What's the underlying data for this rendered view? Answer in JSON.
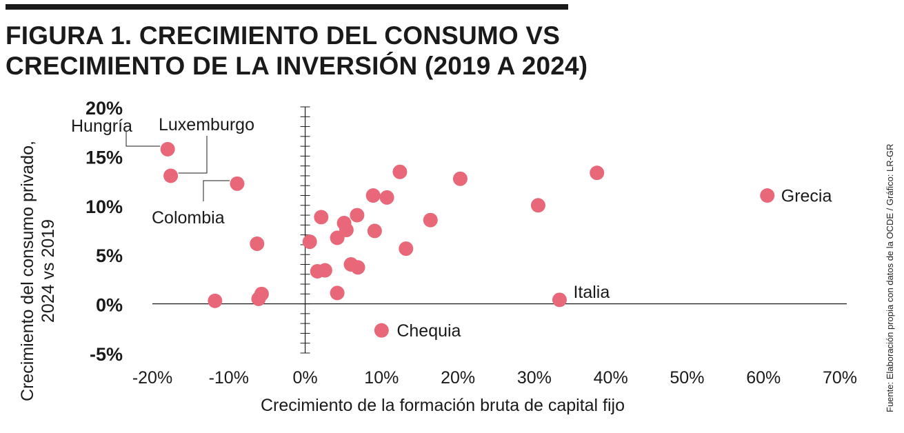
{
  "header": {
    "title_line1": "FIGURA 1. CRECIMIENTO DEL CONSUMO VS",
    "title_line2": "CRECIMIENTO DE LA INVERSIÓN (2019 A 2024)"
  },
  "source": "Fuente: Elaboración propia con datos de la OCDE / Gráfico: LR-GR",
  "colors": {
    "point": "#e8687a",
    "axis": "#1a1a1a",
    "text": "#1a1a1a"
  },
  "chart_data": {
    "type": "scatter",
    "title": "FIGURA 1. CRECIMIENTO DEL CONSUMO VS CRECIMIENTO DE LA INVERSIÓN (2019 A 2024)",
    "xlabel": "Crecimiento de la formación bruta de capital fijo",
    "ylabel_line1": "Crecimiento del consumo privado,",
    "ylabel_line2": "2024 vs 2019",
    "xlim": [
      -20,
      70
    ],
    "ylim": [
      -5,
      20
    ],
    "xticks": [
      -20,
      -10,
      0,
      10,
      20,
      30,
      40,
      50,
      60,
      70
    ],
    "xtick_labels": [
      "-20%",
      "-10%",
      "0%",
      "10%",
      "20%",
      "30%",
      "40%",
      "50%",
      "60%",
      "70%"
    ],
    "yticks": [
      20,
      15,
      10,
      5,
      0,
      -5
    ],
    "ytick_labels": [
      "20%",
      "15%",
      "10%",
      "5%",
      "0%",
      "-5%"
    ],
    "grid": false,
    "points": [
      {
        "x": -18.0,
        "y": 15.7,
        "label": "Hungría"
      },
      {
        "x": -17.6,
        "y": 13.0,
        "label": "Luxemburgo"
      },
      {
        "x": -8.9,
        "y": 12.2,
        "label": "Colombia"
      },
      {
        "x": -6.3,
        "y": 6.1,
        "label": ""
      },
      {
        "x": -11.8,
        "y": 0.3,
        "label": ""
      },
      {
        "x": -6.1,
        "y": 0.5,
        "label": ""
      },
      {
        "x": -5.7,
        "y": 1.0,
        "label": ""
      },
      {
        "x": 0.6,
        "y": 6.3,
        "label": ""
      },
      {
        "x": 1.6,
        "y": 3.3,
        "label": ""
      },
      {
        "x": 2.1,
        "y": 8.8,
        "label": ""
      },
      {
        "x": 2.6,
        "y": 3.4,
        "label": ""
      },
      {
        "x": 4.2,
        "y": 6.7,
        "label": ""
      },
      {
        "x": 4.2,
        "y": 1.1,
        "label": ""
      },
      {
        "x": 5.1,
        "y": 8.2,
        "label": ""
      },
      {
        "x": 5.4,
        "y": 7.5,
        "label": ""
      },
      {
        "x": 6.0,
        "y": 4.0,
        "label": ""
      },
      {
        "x": 6.8,
        "y": 9.0,
        "label": ""
      },
      {
        "x": 6.9,
        "y": 3.7,
        "label": ""
      },
      {
        "x": 8.9,
        "y": 11.0,
        "label": ""
      },
      {
        "x": 9.1,
        "y": 7.4,
        "label": ""
      },
      {
        "x": 10.0,
        "y": -2.7,
        "label": "Chequia"
      },
      {
        "x": 10.7,
        "y": 10.8,
        "label": ""
      },
      {
        "x": 12.4,
        "y": 13.4,
        "label": ""
      },
      {
        "x": 13.2,
        "y": 5.6,
        "label": ""
      },
      {
        "x": 16.4,
        "y": 8.5,
        "label": ""
      },
      {
        "x": 20.3,
        "y": 12.7,
        "label": ""
      },
      {
        "x": 30.5,
        "y": 10.0,
        "label": ""
      },
      {
        "x": 33.3,
        "y": 0.4,
        "label": "Italia"
      },
      {
        "x": 38.2,
        "y": 13.3,
        "label": ""
      },
      {
        "x": 60.5,
        "y": 11.0,
        "label": "Grecia"
      }
    ]
  }
}
